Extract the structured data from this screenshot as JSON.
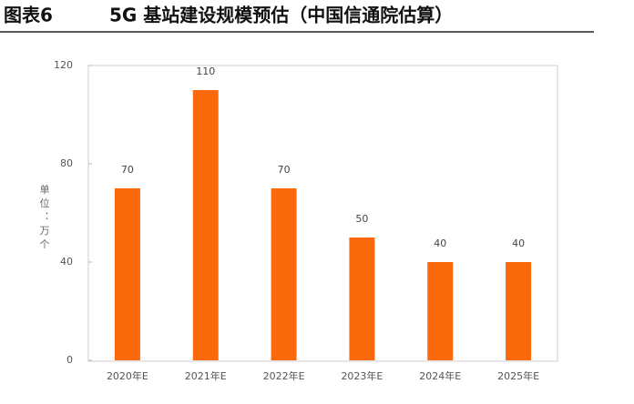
{
  "chart_data": {
    "type": "bar",
    "figure_label": "图表6",
    "title": "5G 基站建设规模预估（中国信通院估算）",
    "y_label": "单位：万个",
    "categories": [
      "2020年E",
      "2021年E",
      "2022年E",
      "2023年E",
      "2024年E",
      "2025年E"
    ],
    "values": [
      70,
      110,
      70,
      50,
      40,
      40
    ],
    "color": "#fa6a0c",
    "ylim": [
      0,
      120
    ],
    "yticks": [
      0,
      40,
      80,
      120
    ],
    "grid": false
  }
}
